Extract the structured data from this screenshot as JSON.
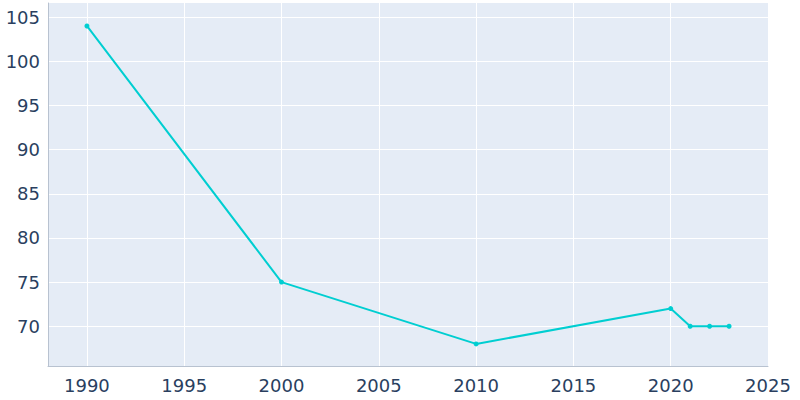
{
  "chart_data": {
    "type": "line",
    "x": [
      1990,
      2000,
      2010,
      2020,
      2021,
      2022,
      2023
    ],
    "values": [
      104,
      75,
      68,
      72,
      70,
      70,
      70
    ],
    "color": "#00ced1",
    "marker": "circle",
    "xlim": [
      1988,
      2025
    ],
    "xticks": [
      1990,
      1995,
      2000,
      2005,
      2010,
      2015,
      2020,
      2025
    ],
    "ylim": [
      65.5,
      106.6
    ],
    "yticks": [
      70,
      75,
      80,
      85,
      90,
      95,
      100,
      105
    ],
    "grid": true
  }
}
